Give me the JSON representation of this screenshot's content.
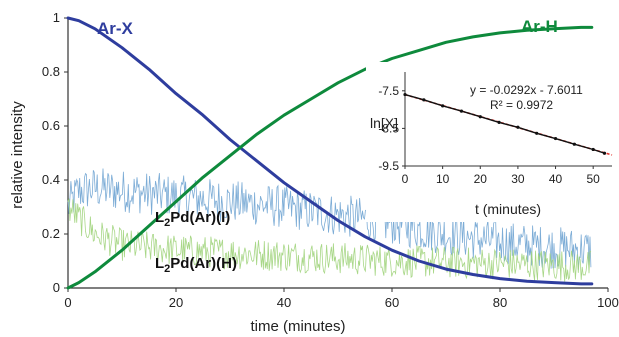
{
  "chart_data": [
    {
      "type": "line",
      "title": "",
      "xlabel": "time (minutes)",
      "ylabel": "relative intensity",
      "xlim": [
        0,
        100
      ],
      "ylim": [
        0,
        1
      ],
      "x_ticks": [
        "0",
        "20",
        "40",
        "60",
        "80",
        "100"
      ],
      "y_ticks": [
        "0",
        "0.2",
        "0.4",
        "0.6",
        "0.8",
        "1"
      ],
      "grid": false,
      "series": [
        {
          "name": "Ar-X",
          "color": "#2e3d9e",
          "x": [
            0,
            2,
            5,
            10,
            15,
            20,
            25,
            30,
            35,
            40,
            45,
            50,
            55,
            60,
            65,
            70,
            75,
            80,
            85,
            90,
            95,
            97
          ],
          "y": [
            1.0,
            0.99,
            0.96,
            0.89,
            0.81,
            0.72,
            0.64,
            0.55,
            0.47,
            0.39,
            0.32,
            0.25,
            0.19,
            0.14,
            0.1,
            0.07,
            0.05,
            0.035,
            0.025,
            0.02,
            0.015,
            0.015
          ]
        },
        {
          "name": "Ar-H",
          "color": "#0e8a3c",
          "x": [
            0,
            2,
            5,
            10,
            15,
            20,
            25,
            30,
            35,
            40,
            45,
            50,
            55,
            60,
            65,
            70,
            75,
            80,
            85,
            90,
            95,
            97
          ],
          "y": [
            0.0,
            0.02,
            0.06,
            0.14,
            0.23,
            0.32,
            0.41,
            0.49,
            0.57,
            0.64,
            0.7,
            0.76,
            0.81,
            0.85,
            0.88,
            0.91,
            0.93,
            0.945,
            0.955,
            0.96,
            0.965,
            0.965
          ]
        },
        {
          "name": "L2Pd(Ar)(I)",
          "color": "#6ea3d1",
          "noisy": true,
          "noise": 0.08,
          "x": [
            0,
            2,
            5,
            10,
            20,
            30,
            40,
            50,
            60,
            70,
            80,
            90,
            97
          ],
          "y": [
            0.3,
            0.36,
            0.37,
            0.36,
            0.34,
            0.32,
            0.3,
            0.27,
            0.24,
            0.2,
            0.17,
            0.15,
            0.14
          ]
        },
        {
          "name": "L2Pd(Ar)(H)",
          "color": "#9fd37a",
          "noisy": true,
          "noise": 0.06,
          "x": [
            0,
            2,
            5,
            10,
            20,
            30,
            40,
            50,
            60,
            70,
            80,
            90,
            97
          ],
          "y": [
            0.3,
            0.26,
            0.2,
            0.16,
            0.14,
            0.13,
            0.12,
            0.11,
            0.1,
            0.095,
            0.09,
            0.085,
            0.08
          ]
        }
      ],
      "labels": {
        "arx": "Ar-X",
        "arh": "Ar-H",
        "pdI_prefix": "L",
        "pdI_sub": "2",
        "pdI_suffix": "Pd(Ar)(I)",
        "pdH_prefix": "L",
        "pdH_sub": "2",
        "pdH_suffix": "Pd(Ar)(H)"
      }
    },
    {
      "type": "scatter",
      "title": "",
      "xlabel": "t (minutes)",
      "ylabel": "ln[X]",
      "xlim": [
        0,
        55
      ],
      "ylim": [
        -9.5,
        -7
      ],
      "x_ticks": [
        "0",
        "10",
        "20",
        "30",
        "40",
        "50"
      ],
      "y_ticks": [
        "-7.5",
        "-8.5",
        "-9.5"
      ],
      "fit_equation": "y = -0.0292x - 7.6011",
      "r_squared": "R² = 0.9972",
      "slope": -0.0292,
      "intercept": -7.6011,
      "data_color": "#111111",
      "fit_color": "#e0302a",
      "x": [
        0,
        5,
        10,
        15,
        20,
        25,
        30,
        35,
        40,
        45,
        50,
        53
      ],
      "y": [
        -7.6,
        -7.74,
        -7.9,
        -8.04,
        -8.19,
        -8.34,
        -8.47,
        -8.63,
        -8.77,
        -8.92,
        -9.06,
        -9.16
      ]
    }
  ]
}
